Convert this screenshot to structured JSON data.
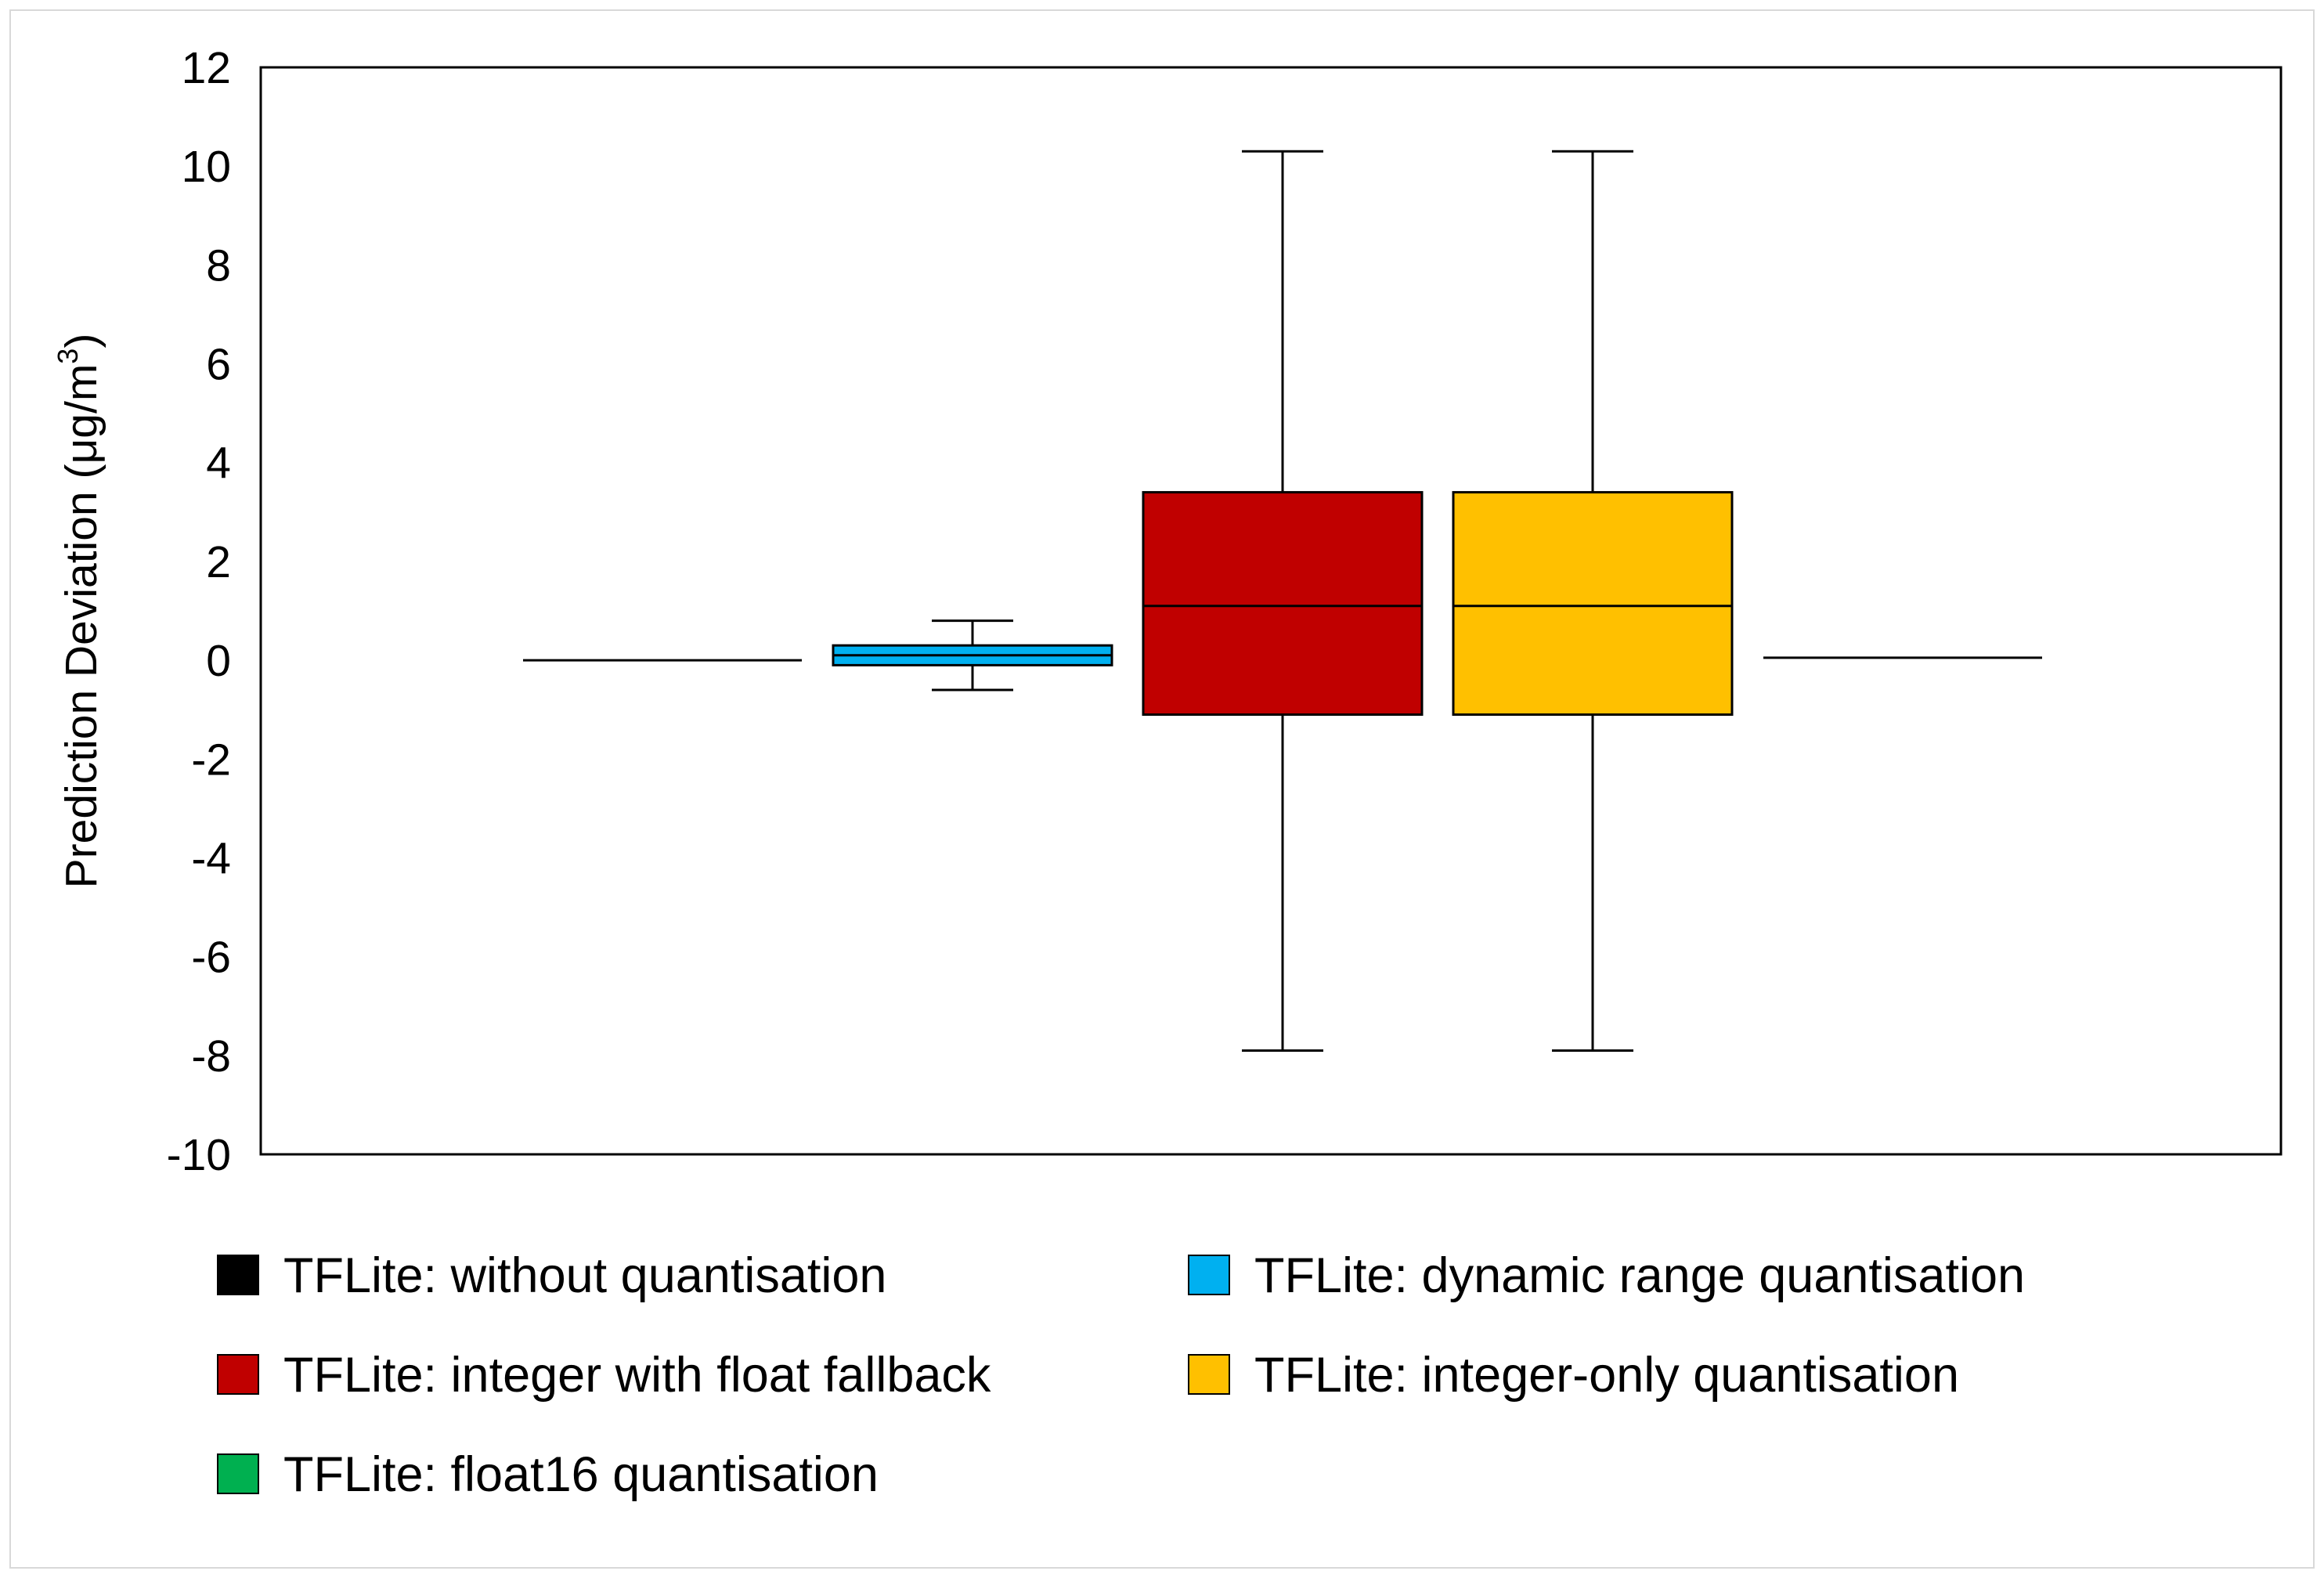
{
  "chart_data": {
    "type": "box",
    "ylabel": "Prediction Deviation (μg/m",
    "ylabel_superscript": "3",
    "ylabel_close": ")",
    "ylim": [
      -10,
      12
    ],
    "yticks": [
      -10,
      -8,
      -6,
      -4,
      -2,
      0,
      2,
      4,
      6,
      8,
      10,
      12
    ],
    "grid": false,
    "legend_position": "bottom",
    "series": [
      {
        "name": "TFLite: without quantisation",
        "color": "#000000",
        "whisker_low": 0.0,
        "q1": 0.0,
        "median": 0.0,
        "q3": 0.0,
        "whisker_high": 0.0
      },
      {
        "name": "TFLite: dynamic range quantisation",
        "color": "#00b0f0",
        "whisker_low": -0.6,
        "q1": -0.1,
        "median": 0.1,
        "q3": 0.3,
        "whisker_high": 0.8
      },
      {
        "name": "TFLite: integer with float fallback",
        "color": "#c00000",
        "whisker_low": -7.9,
        "q1": -1.1,
        "median": 1.1,
        "q3": 3.4,
        "whisker_high": 10.3
      },
      {
        "name": "TFLite: integer-only quantisation",
        "color": "#ffc000",
        "whisker_low": -7.9,
        "q1": -1.1,
        "median": 1.1,
        "q3": 3.4,
        "whisker_high": 10.3
      },
      {
        "name": "TFLite: float16 quantisation",
        "color": "#00b050",
        "whisker_low": 0.05,
        "q1": 0.05,
        "median": 0.05,
        "q3": 0.05,
        "whisker_high": 0.05
      }
    ]
  }
}
